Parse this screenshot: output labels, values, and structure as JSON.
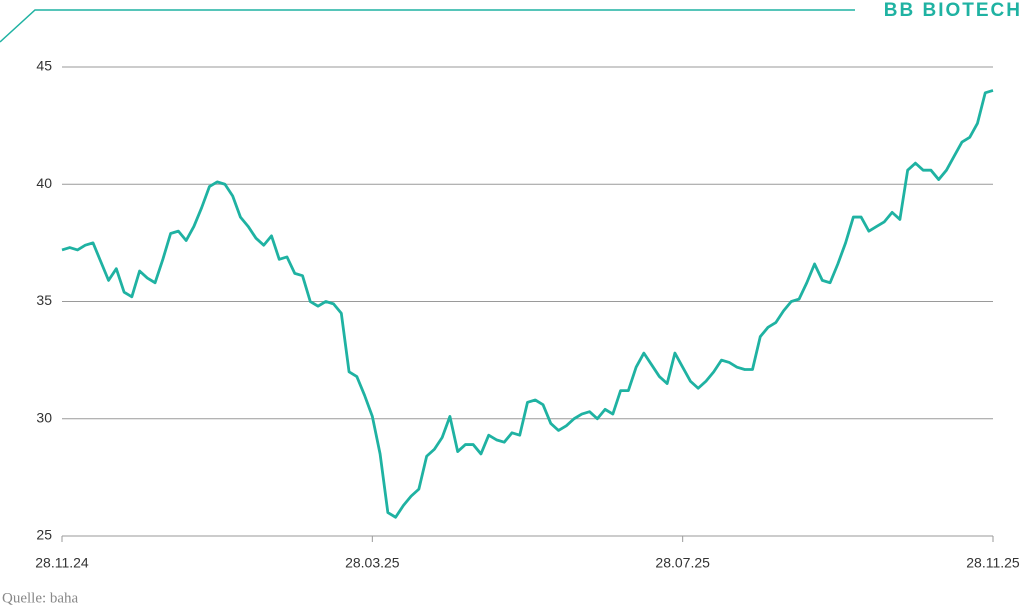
{
  "chart_data": {
    "type": "line",
    "brand": "BB BIOTECH",
    "source": "Quelle: baha",
    "color": "#1fb2a2",
    "categories": [
      "28.11.24",
      null,
      null,
      null,
      null,
      null,
      null,
      null,
      null,
      null,
      null,
      null,
      null,
      null,
      null,
      null,
      null,
      null,
      null,
      null,
      null,
      null,
      null,
      null,
      null,
      null,
      null,
      null,
      null,
      null,
      null,
      null,
      null,
      null,
      null,
      null,
      null,
      null,
      null,
      null,
      "28.03.25",
      null,
      null,
      null,
      null,
      null,
      null,
      null,
      null,
      null,
      null,
      null,
      null,
      null,
      null,
      null,
      null,
      null,
      null,
      null,
      null,
      null,
      null,
      null,
      null,
      null,
      null,
      null,
      null,
      null,
      null,
      null,
      null,
      null,
      null,
      null,
      null,
      null,
      null,
      null,
      "28.07.25",
      null,
      null,
      null,
      null,
      null,
      null,
      null,
      null,
      null,
      null,
      null,
      null,
      null,
      null,
      null,
      null,
      null,
      null,
      null,
      null,
      null,
      null,
      null,
      null,
      null,
      null,
      null,
      null,
      null,
      null,
      null,
      null,
      null,
      null,
      null,
      null,
      null,
      null,
      null,
      "28.11.25"
    ],
    "values": [
      37.2,
      37.3,
      37.2,
      37.4,
      37.5,
      36.7,
      35.9,
      36.4,
      35.4,
      35.2,
      36.3,
      36.0,
      35.8,
      36.8,
      37.9,
      38.0,
      37.6,
      38.2,
      39.0,
      39.9,
      40.1,
      40.0,
      39.5,
      38.6,
      38.2,
      37.7,
      37.4,
      37.8,
      36.8,
      36.9,
      36.2,
      36.1,
      35.0,
      34.8,
      35.0,
      34.9,
      34.5,
      32.0,
      31.8,
      31.0,
      30.1,
      28.5,
      26.0,
      25.8,
      26.3,
      26.7,
      27.0,
      28.4,
      28.7,
      29.2,
      30.1,
      28.6,
      28.9,
      28.9,
      28.5,
      29.3,
      29.1,
      29.0,
      29.4,
      29.3,
      30.7,
      30.8,
      30.6,
      29.8,
      29.5,
      29.7,
      30.0,
      30.2,
      30.3,
      30.0,
      30.4,
      30.2,
      31.2,
      31.2,
      32.2,
      32.8,
      32.3,
      31.8,
      31.5,
      32.8,
      32.2,
      31.6,
      31.3,
      31.6,
      32.0,
      32.5,
      32.4,
      32.2,
      32.1,
      32.1,
      33.5,
      33.9,
      34.1,
      34.6,
      35.0,
      35.1,
      35.8,
      36.6,
      35.9,
      35.8,
      36.6,
      37.5,
      38.6,
      38.6,
      38.0,
      38.2,
      38.4,
      38.8,
      38.5,
      40.6,
      40.9,
      40.6,
      40.6,
      40.2,
      40.6,
      41.2,
      41.8,
      42.0,
      42.6,
      43.9,
      44.0
    ],
    "ylim": [
      25,
      45
    ],
    "yticks": [
      25,
      30,
      35,
      40,
      45
    ],
    "grid": true
  }
}
